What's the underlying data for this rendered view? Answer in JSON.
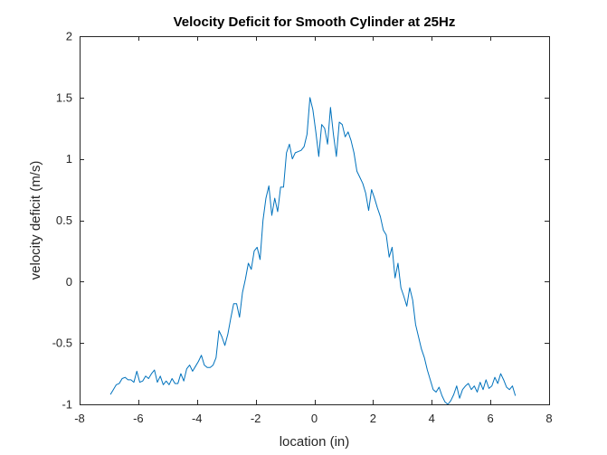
{
  "chart_data": {
    "type": "line",
    "title": "Velocity Deficit for Smooth Cylinder at 25Hz",
    "xlabel": "location (in)",
    "ylabel": "velocity deficit (m/s)",
    "xlim": [
      -8,
      8
    ],
    "ylim": [
      -1,
      2
    ],
    "xticks": [
      -8,
      -6,
      -4,
      -2,
      0,
      2,
      4,
      6,
      8
    ],
    "xtick_labels": [
      "-8",
      "-6",
      "-4",
      "-2",
      "0",
      "2",
      "4",
      "6",
      "8"
    ],
    "yticks": [
      -1,
      -0.5,
      0,
      0.5,
      1,
      1.5,
      2
    ],
    "ytick_labels": [
      "-1",
      "-0.5",
      "0",
      "0.5",
      "1",
      "1.5",
      "2"
    ],
    "grid": false,
    "colors": {
      "line": "#0072bd",
      "axes": "#262626",
      "background": "#ffffff"
    },
    "series": [
      {
        "x": [
          -6.95,
          -6.85,
          -6.75,
          -6.65,
          -6.55,
          -6.45,
          -6.35,
          -6.25,
          -6.15,
          -6.05,
          -5.95,
          -5.85,
          -5.75,
          -5.65,
          -5.55,
          -5.45,
          -5.35,
          -5.25,
          -5.15,
          -5.05,
          -4.95,
          -4.85,
          -4.75,
          -4.65,
          -4.55,
          -4.45,
          -4.35,
          -4.25,
          -4.15,
          -4.05,
          -3.95,
          -3.85,
          -3.75,
          -3.65,
          -3.55,
          -3.45,
          -3.35,
          -3.25,
          -3.15,
          -3.05,
          -2.95,
          -2.85,
          -2.75,
          -2.65,
          -2.55,
          -2.45,
          -2.35,
          -2.25,
          -2.15,
          -2.05,
          -1.95,
          -1.85,
          -1.75,
          -1.65,
          -1.55,
          -1.45,
          -1.35,
          -1.25,
          -1.15,
          -1.05,
          -0.95,
          -0.85,
          -0.75,
          -0.65,
          -0.55,
          -0.45,
          -0.35,
          -0.25,
          -0.15,
          -0.05,
          0.05,
          0.15,
          0.25,
          0.35,
          0.45,
          0.55,
          0.65,
          0.75,
          0.85,
          0.95,
          1.05,
          1.15,
          1.25,
          1.35,
          1.45,
          1.55,
          1.65,
          1.75,
          1.85,
          1.95,
          2.05,
          2.15,
          2.25,
          2.35,
          2.45,
          2.55,
          2.65,
          2.75,
          2.85,
          2.95,
          3.05,
          3.15,
          3.25,
          3.35,
          3.45,
          3.55,
          3.65,
          3.75,
          3.85,
          3.95,
          4.05,
          4.15,
          4.25,
          4.35,
          4.45,
          4.55,
          4.65,
          4.75,
          4.85,
          4.95,
          5.05,
          5.15,
          5.25,
          5.35,
          5.45,
          5.55,
          5.65,
          5.75,
          5.85,
          5.95,
          6.05,
          6.15,
          6.25,
          6.35,
          6.45,
          6.55,
          6.65,
          6.75,
          6.85
        ],
        "y": [
          -0.92,
          -0.88,
          -0.84,
          -0.83,
          -0.79,
          -0.78,
          -0.8,
          -0.8,
          -0.82,
          -0.73,
          -0.82,
          -0.81,
          -0.77,
          -0.79,
          -0.75,
          -0.72,
          -0.82,
          -0.77,
          -0.84,
          -0.81,
          -0.84,
          -0.79,
          -0.83,
          -0.83,
          -0.75,
          -0.81,
          -0.71,
          -0.68,
          -0.73,
          -0.69,
          -0.65,
          -0.6,
          -0.68,
          -0.7,
          -0.7,
          -0.68,
          -0.62,
          -0.4,
          -0.45,
          -0.52,
          -0.43,
          -0.3,
          -0.18,
          -0.18,
          -0.29,
          -0.09,
          0.02,
          0.15,
          0.1,
          0.25,
          0.28,
          0.18,
          0.5,
          0.68,
          0.78,
          0.54,
          0.68,
          0.57,
          0.77,
          0.77,
          1.05,
          1.12,
          1.0,
          1.05,
          1.06,
          1.07,
          1.1,
          1.2,
          1.5,
          1.4,
          1.22,
          1.02,
          1.28,
          1.25,
          1.12,
          1.42,
          1.2,
          1.02,
          1.3,
          1.28,
          1.18,
          1.22,
          1.15,
          1.05,
          0.9,
          0.85,
          0.8,
          0.72,
          0.58,
          0.75,
          0.68,
          0.6,
          0.53,
          0.42,
          0.38,
          0.2,
          0.28,
          0.03,
          0.15,
          -0.05,
          -0.12,
          -0.2,
          -0.05,
          -0.15,
          -0.35,
          -0.45,
          -0.55,
          -0.62,
          -0.72,
          -0.8,
          -0.88,
          -0.9,
          -0.86,
          -0.93,
          -0.98,
          -1.0,
          -0.97,
          -0.92,
          -0.85,
          -0.95,
          -0.88,
          -0.85,
          -0.83,
          -0.88,
          -0.85,
          -0.9,
          -0.82,
          -0.88,
          -0.8,
          -0.87,
          -0.85,
          -0.78,
          -0.83,
          -0.75,
          -0.8,
          -0.86,
          -0.88,
          -0.85,
          -0.93
        ]
      }
    ]
  }
}
